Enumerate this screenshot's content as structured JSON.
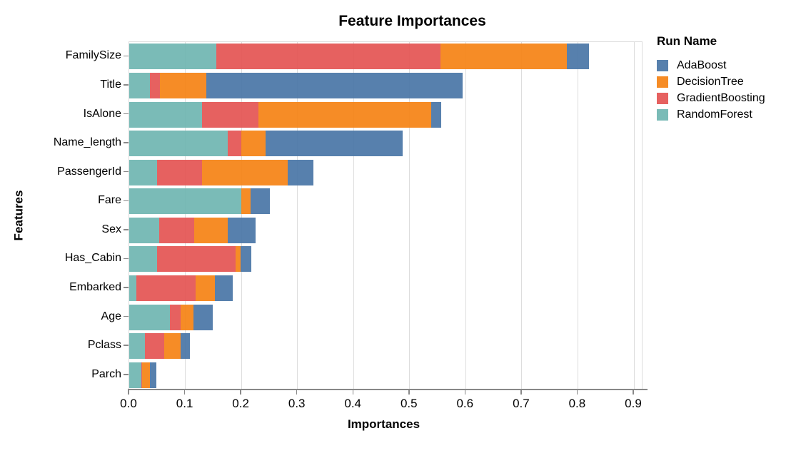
{
  "title": "Feature Importances",
  "x_axis": {
    "label": "Importances",
    "ticks": [
      "0.0",
      "0.1",
      "0.2",
      "0.3",
      "0.4",
      "0.5",
      "0.6",
      "0.7",
      "0.8",
      "0.9"
    ]
  },
  "y_axis": {
    "label": "Features"
  },
  "legend": {
    "title": "Run Name",
    "items": [
      {
        "label": "AdaBoost",
        "color": "#4c78a8"
      },
      {
        "label": "DecisionTree",
        "color": "#f58518"
      },
      {
        "label": "GradientBoosting",
        "color": "#e45756"
      },
      {
        "label": "RandomForest",
        "color": "#72b7b2"
      }
    ]
  },
  "chart_data": {
    "type": "bar",
    "orientation": "horizontal",
    "stacked": true,
    "title": "Feature Importances",
    "xlabel": "Importances",
    "ylabel": "Features",
    "xlim": [
      0,
      0.9
    ],
    "grid": true,
    "legend_position": "right",
    "categories": [
      "FamilySize",
      "Title",
      "IsAlone",
      "Name_length",
      "PassengerId",
      "Fare",
      "Sex",
      "Has_Cabin",
      "Embarked",
      "Age",
      "Pclass",
      "Parch"
    ],
    "stack_order": [
      "RandomForest",
      "GradientBoosting",
      "DecisionTree",
      "AdaBoost"
    ],
    "series": [
      {
        "name": "AdaBoost",
        "color": "#4c78a8",
        "values": [
          0.04,
          0.458,
          0.018,
          0.244,
          0.046,
          0.035,
          0.049,
          0.019,
          0.031,
          0.035,
          0.016,
          0.011
        ]
      },
      {
        "name": "DecisionTree",
        "color": "#f58518",
        "values": [
          0.225,
          0.082,
          0.308,
          0.043,
          0.153,
          0.016,
          0.06,
          0.009,
          0.035,
          0.022,
          0.03,
          0.014
        ]
      },
      {
        "name": "GradientBoosting",
        "color": "#e45756",
        "values": [
          0.4,
          0.018,
          0.1,
          0.025,
          0.08,
          0.0,
          0.062,
          0.141,
          0.105,
          0.019,
          0.034,
          0.002
        ]
      },
      {
        "name": "RandomForest",
        "color": "#72b7b2",
        "values": [
          0.155,
          0.037,
          0.13,
          0.175,
          0.05,
          0.2,
          0.054,
          0.049,
          0.013,
          0.073,
          0.028,
          0.021
        ]
      }
    ],
    "totals": [
      0.82,
      0.595,
      0.556,
      0.487,
      0.329,
      0.251,
      0.225,
      0.218,
      0.184,
      0.149,
      0.108,
      0.048
    ]
  }
}
